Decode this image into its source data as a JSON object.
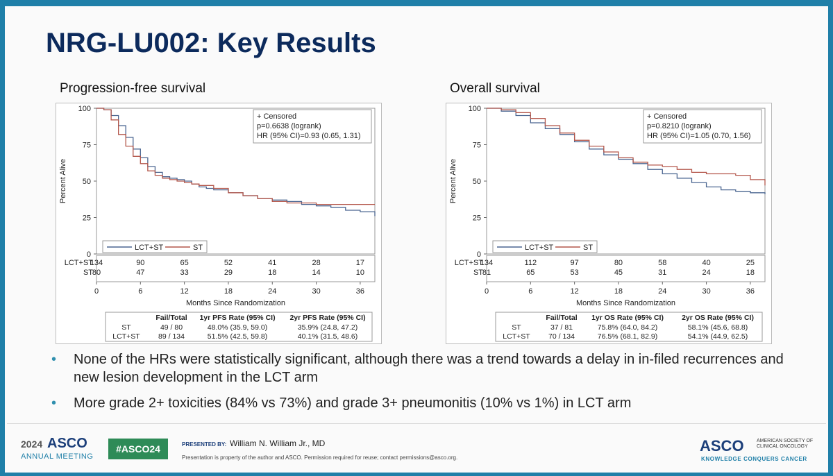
{
  "slide": {
    "title": "NRG-LU002: Key Results",
    "bullets": [
      "None of the HRs were statistically significant, although there was a trend towards a delay in in-filed recurrences and new lesion development in the LCT arm",
      "More grade 2+ toxicities (84% vs 73%) and grade 3+ pneumonitis (10% vs 1%) in LCT arm"
    ]
  },
  "footer": {
    "meeting_year": "2024",
    "meeting_brand": "ASCO",
    "meeting_sub": "ANNUAL MEETING",
    "hashtag": "#ASCO24",
    "presented_by_label": "PRESENTED BY:",
    "presenter": "William N. William Jr., MD",
    "disclaimer": "Presentation is property of the author and ASCO. Permission required for reuse; contact permissions@asco.org.",
    "asco_brand": "ASCO",
    "asco_society": "AMERICAN SOCIETY OF CLINICAL ONCOLOGY",
    "asco_tagline": "KNOWLEDGE CONQUERS CANCER"
  },
  "chart_data": [
    {
      "type": "line",
      "heading": "Progression-free survival",
      "xlabel": "Months Since Randomization",
      "ylabel": "Percent Alive",
      "xlim": [
        0,
        38
      ],
      "ylim": [
        0,
        100
      ],
      "xticks": [
        0,
        6,
        12,
        18,
        24,
        30,
        36
      ],
      "yticks": [
        0,
        25,
        50,
        75,
        100
      ],
      "annotation": [
        "+ Censored",
        "p=0.6638 (logrank)",
        "HR (95% CI)=0.93 (0.65, 1.31)"
      ],
      "legend": [
        "LCT+ST",
        "ST"
      ],
      "series": [
        {
          "name": "LCT+ST",
          "color": "#4a6590",
          "x": [
            0,
            1,
            2,
            3,
            4,
            5,
            6,
            7,
            8,
            9,
            10,
            11,
            12,
            13,
            14,
            15,
            16,
            18,
            20,
            22,
            24,
            26,
            28,
            30,
            32,
            34,
            36,
            38
          ],
          "y": [
            100,
            99,
            95,
            88,
            80,
            72,
            66,
            60,
            56,
            53,
            52,
            51,
            50,
            48,
            46,
            45,
            44,
            42,
            40,
            38,
            37,
            36,
            34,
            33,
            32,
            30,
            29,
            26
          ]
        },
        {
          "name": "ST",
          "color": "#b3564a",
          "x": [
            0,
            1,
            2,
            3,
            4,
            5,
            6,
            7,
            8,
            9,
            10,
            11,
            12,
            13,
            14,
            16,
            18,
            20,
            22,
            24,
            26,
            28,
            30,
            32,
            34,
            36,
            38
          ],
          "y": [
            100,
            99,
            92,
            82,
            74,
            67,
            62,
            57,
            54,
            52,
            51,
            50,
            49,
            48,
            47,
            45,
            42,
            40,
            38,
            36,
            35,
            35,
            34,
            34,
            34,
            34,
            34
          ]
        }
      ],
      "risk_table": {
        "rows": [
          {
            "label": "LCT+ST",
            "values": [
              134,
              90,
              65,
              52,
              41,
              28,
              17
            ]
          },
          {
            "label": "ST",
            "values": [
              80,
              47,
              33,
              29,
              18,
              14,
              10
            ]
          }
        ]
      },
      "summary_table": {
        "headers": [
          "",
          "Fail/Total",
          "1yr PFS Rate (95% CI)",
          "2yr PFS Rate (95% CI)"
        ],
        "rows": [
          [
            "ST",
            "49 / 80",
            "48.0% (35.9, 59.0)",
            "35.9% (24.8, 47.2)"
          ],
          [
            "LCT+ST",
            "89 / 134",
            "51.5% (42.5, 59.8)",
            "40.1% (31.5, 48.6)"
          ]
        ]
      }
    },
    {
      "type": "line",
      "heading": "Overall survival",
      "xlabel": "Months Since Randomization",
      "ylabel": "Percent Alive",
      "xlim": [
        0,
        38
      ],
      "ylim": [
        0,
        100
      ],
      "xticks": [
        0,
        6,
        12,
        18,
        24,
        30,
        36
      ],
      "yticks": [
        0,
        25,
        50,
        75,
        100
      ],
      "annotation": [
        "+ Censored",
        "p=0.8210 (logrank)",
        "HR (95% CI)=1.05 (0.70, 1.56)"
      ],
      "legend": [
        "LCT+ST",
        "ST"
      ],
      "series": [
        {
          "name": "LCT+ST",
          "color": "#4a6590",
          "x": [
            0,
            2,
            4,
            6,
            8,
            10,
            12,
            14,
            16,
            18,
            20,
            22,
            24,
            26,
            28,
            30,
            32,
            34,
            36,
            38
          ],
          "y": [
            100,
            98,
            95,
            90,
            86,
            82,
            77,
            72,
            68,
            65,
            62,
            58,
            55,
            52,
            49,
            46,
            44,
            43,
            42,
            41
          ]
        },
        {
          "name": "ST",
          "color": "#b3564a",
          "x": [
            0,
            2,
            4,
            6,
            8,
            10,
            12,
            14,
            16,
            18,
            20,
            22,
            24,
            26,
            28,
            30,
            32,
            34,
            36,
            38
          ],
          "y": [
            100,
            99,
            97,
            93,
            88,
            83,
            78,
            74,
            70,
            66,
            63,
            61,
            60,
            58,
            56,
            55,
            55,
            54,
            51,
            47
          ]
        }
      ],
      "risk_table": {
        "rows": [
          {
            "label": "LCT+ST",
            "values": [
              134,
              112,
              97,
              80,
              58,
              40,
              25
            ]
          },
          {
            "label": "ST",
            "values": [
              81,
              65,
              53,
              45,
              31,
              24,
              18
            ]
          }
        ]
      },
      "summary_table": {
        "headers": [
          "",
          "Fail/Total",
          "1yr OS Rate (95% CI)",
          "2yr OS Rate (95% CI)"
        ],
        "rows": [
          [
            "ST",
            "37 / 81",
            "75.8% (64.0, 84.2)",
            "58.1% (45.6, 68.8)"
          ],
          [
            "LCT+ST",
            "70 / 134",
            "76.5% (68.1, 82.9)",
            "54.1% (44.9, 62.5)"
          ]
        ]
      }
    }
  ]
}
